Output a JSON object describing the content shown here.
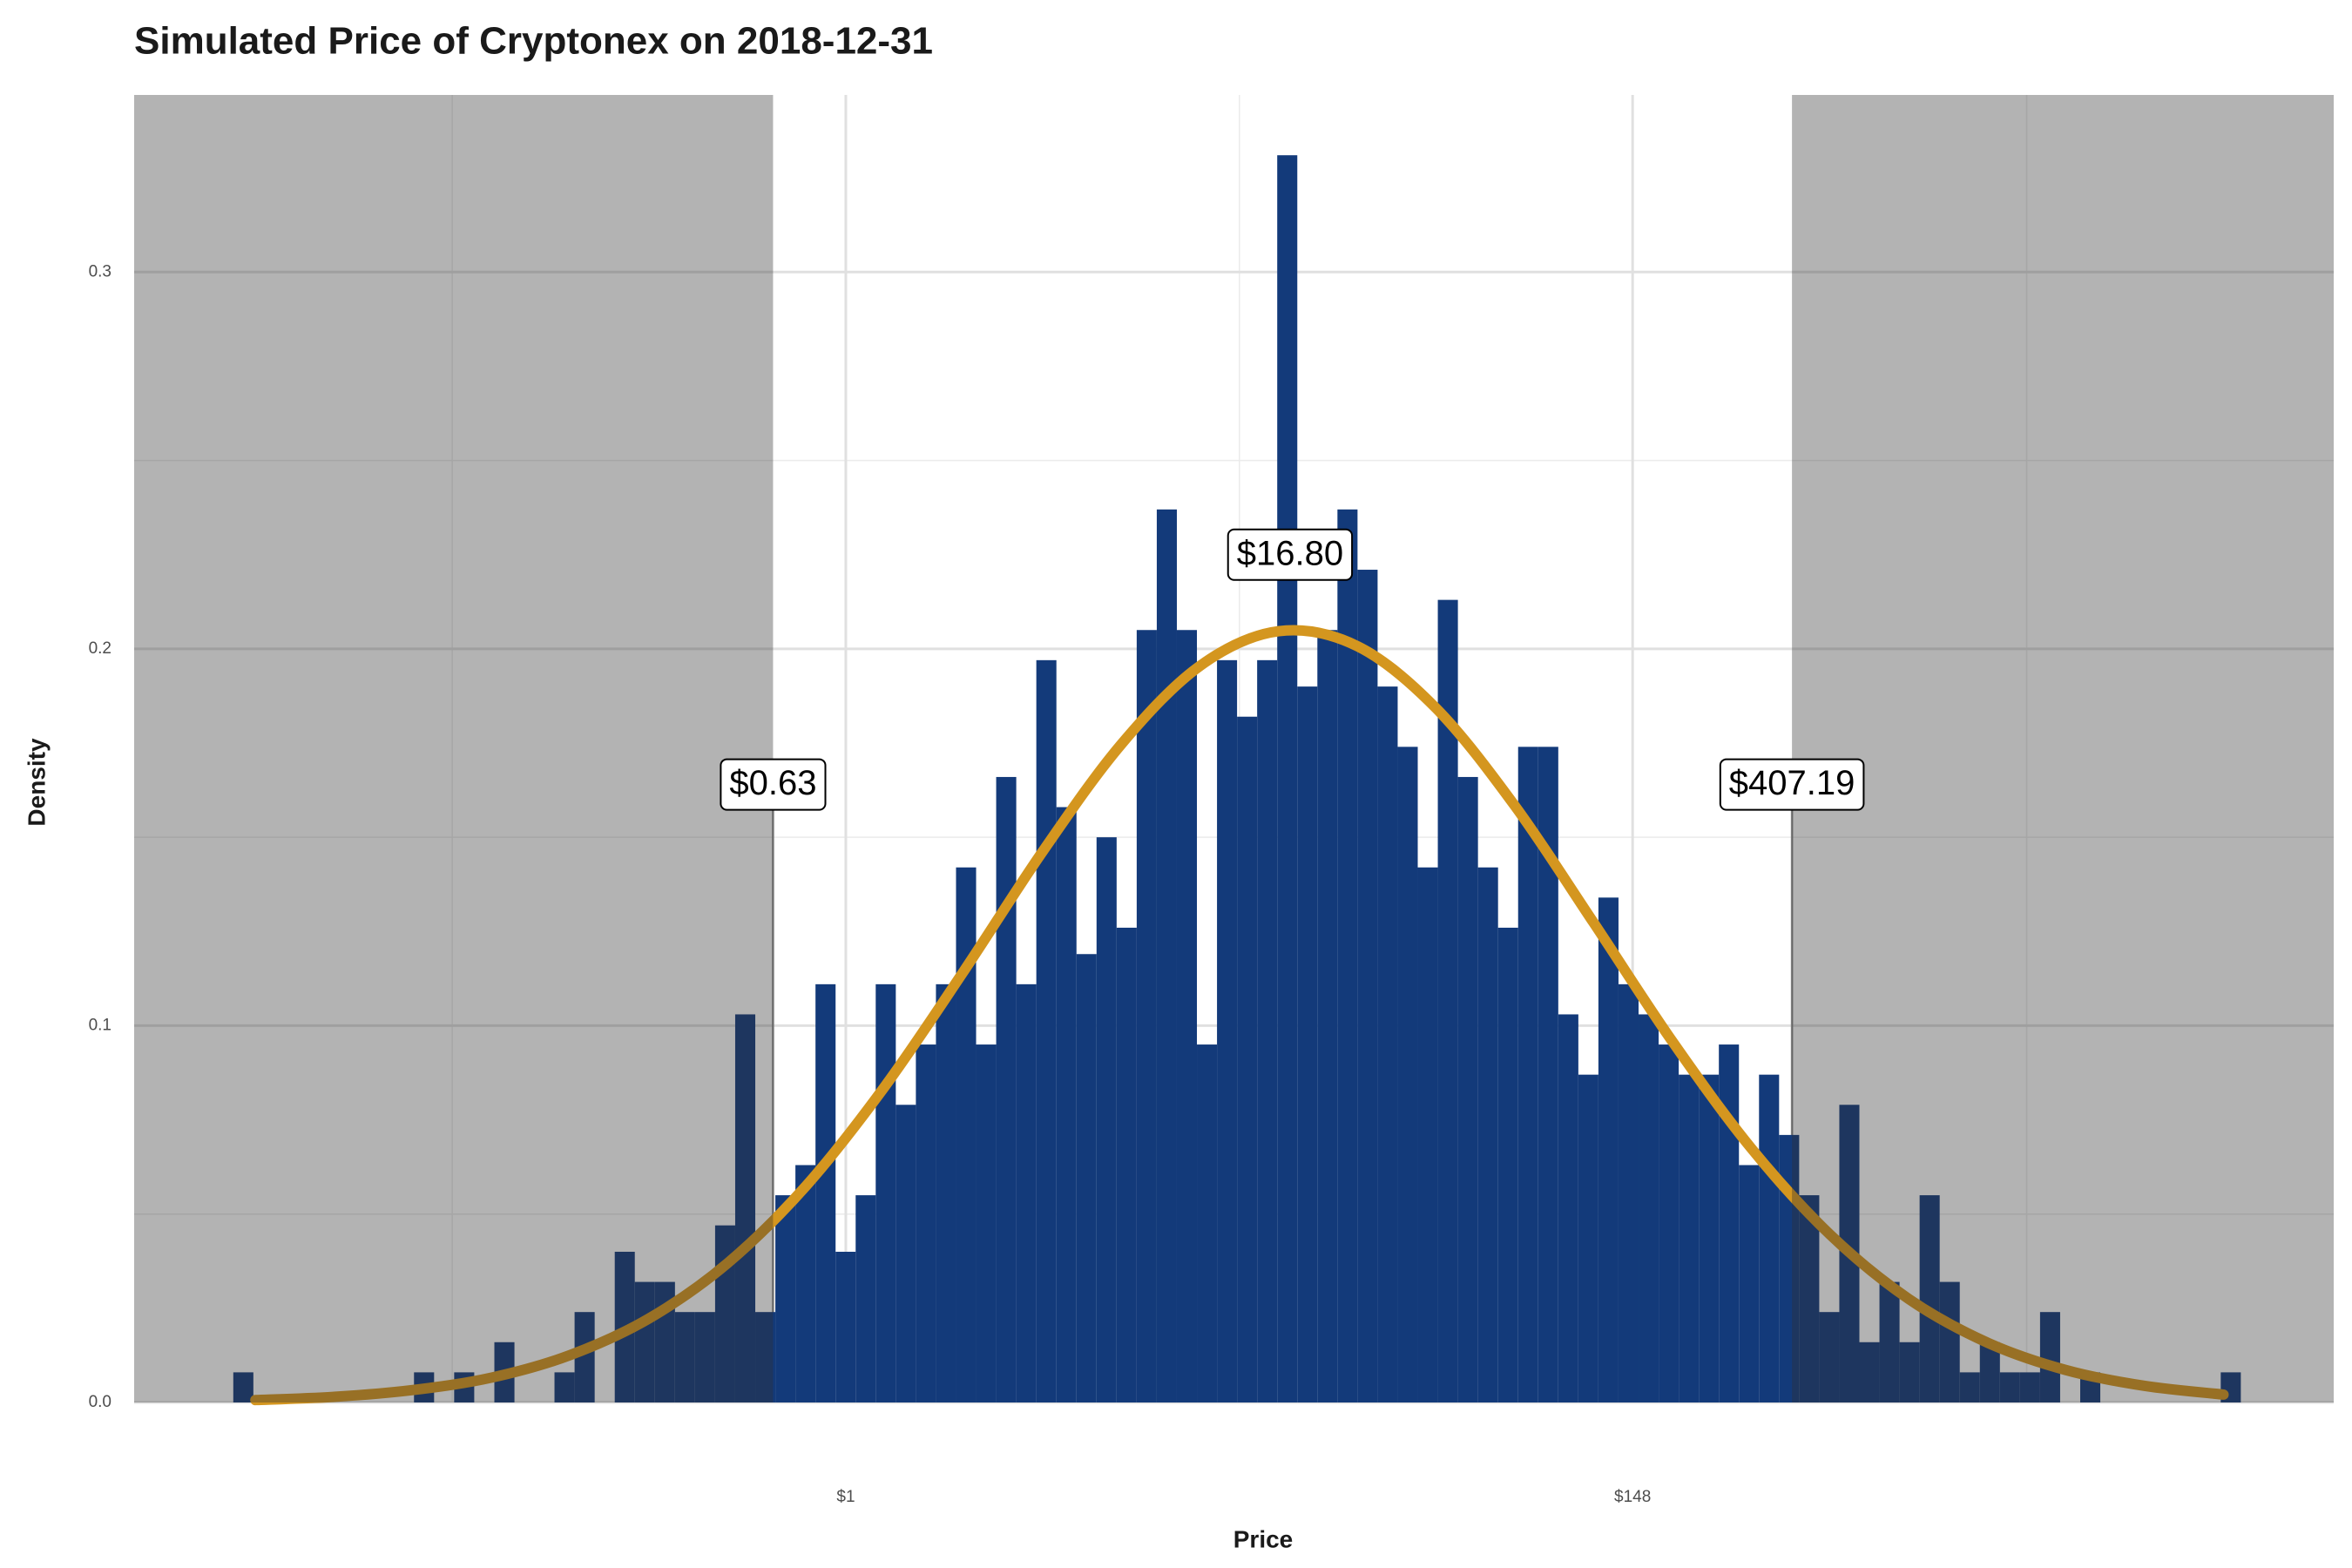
{
  "chart_data": {
    "type": "histogram",
    "title": "Simulated Price of Cryptonex on 2018-12-31",
    "x_label": "Price",
    "y_label": "Density",
    "xscale": "log",
    "xlim": [
      0.01089,
      12708
    ],
    "xticks": [
      {
        "value": 1,
        "label": "$1"
      },
      {
        "value": 148,
        "label": "$148"
      }
    ],
    "xminor": [
      0.0821,
      12.18,
      1808
    ],
    "ylim": [
      0,
      0.347
    ],
    "yticks": [
      {
        "value": 0,
        "label": "0.0"
      },
      0.1,
      0.2,
      0.3
    ],
    "yminor": [
      0.05,
      0.15,
      0.25
    ],
    "grid": true,
    "color": "#133a7a",
    "bins": [
      0.02044,
      0.02322,
      0.02638,
      0.02997,
      0.03404,
      0.03868,
      0.04394,
      0.04991,
      0.0567,
      0.06441,
      0.07317,
      0.08312,
      0.09442,
      0.1073,
      0.1219,
      0.1384,
      0.1572,
      0.1786,
      0.2029,
      0.2305,
      0.2618,
      0.2974,
      0.3379,
      0.3838,
      0.436,
      0.4953,
      0.5627,
      0.6392,
      0.7261,
      0.8249,
      0.9371,
      1.0645,
      1.2092,
      1.3737,
      1.5605,
      1.7727,
      2.0138,
      2.2876,
      2.5987,
      2.9521,
      3.3535,
      3.8095,
      4.3276,
      4.9161,
      5.5845,
      6.344,
      7.207,
      8.187,
      9.3,
      10.565,
      12.001,
      13.633,
      15.487,
      17.593,
      19.985,
      22.703,
      25.79,
      29.297,
      33.281,
      37.807,
      42.948,
      48.789,
      55.424,
      62.961,
      71.522,
      81.248,
      92.297,
      104.85,
      119.1,
      135.3,
      153.7,
      174.6,
      198.34,
      225.31,
      255.95,
      290.76,
      330.3,
      375.21,
      426.24,
      484.2,
      550.04,
      624.84,
      709.81,
      806.33,
      915.98,
      1040.5,
      1182.0,
      1342.8,
      1525.4,
      1732.8,
      1968.4,
      2236.1,
      2540.2,
      2885.6,
      3278.0,
      3723.8,
      4230.2,
      4805.4,
      5458.9,
      6201.2,
      7044.5
    ],
    "values": [
      0.008,
      0,
      0,
      0,
      0,
      0,
      0,
      0,
      0,
      0.008,
      0,
      0.008,
      0,
      0.016,
      0,
      0,
      0.008,
      0.024,
      0,
      0.04,
      0.032,
      0.032,
      0.024,
      0.024,
      0.047,
      0.103,
      0.024,
      0.055,
      0.063,
      0.111,
      0.04,
      0.055,
      0.111,
      0.079,
      0.095,
      0.111,
      0.142,
      0.095,
      0.166,
      0.111,
      0.197,
      0.158,
      0.119,
      0.15,
      0.126,
      0.205,
      0.237,
      0.205,
      0.095,
      0.197,
      0.182,
      0.197,
      0.331,
      0.19,
      0.205,
      0.237,
      0.221,
      0.19,
      0.174,
      0.142,
      0.213,
      0.166,
      0.142,
      0.126,
      0.174,
      0.174,
      0.103,
      0.087,
      0.134,
      0.111,
      0.103,
      0.095,
      0.087,
      0.087,
      0.095,
      0.063,
      0.087,
      0.071,
      0.055,
      0.024,
      0.079,
      0.016,
      0.032,
      0.016,
      0.055,
      0.032,
      0.008,
      0.016,
      0.008,
      0.008,
      0.024,
      0,
      0.008,
      0,
      0,
      0,
      0,
      0,
      0,
      0.008
    ],
    "curve": {
      "color": "#d4961f",
      "x": [
        0.02352,
        0.03877,
        0.06393,
        0.1054,
        0.1738,
        0.2865,
        0.4724,
        0.7788,
        1.284,
        2.117,
        3.49,
        5.755,
        9.488,
        15.64,
        25.79,
        42.52,
        70.11,
        115.58,
        190.57,
        314.19,
        518.01,
        854.06,
        1408.1,
        2321.6,
        3827.6,
        6310.7
      ],
      "values": [
        0.00065,
        0.0015,
        0.0033,
        0.0066,
        0.0126,
        0.0223,
        0.037,
        0.0576,
        0.084,
        0.1145,
        0.1462,
        0.1747,
        0.1955,
        0.2047,
        0.2007,
        0.1842,
        0.1583,
        0.1273,
        0.0958,
        0.0675,
        0.0446,
        0.0275,
        0.0159,
        0.0086,
        0.0044,
        0.0021
      ]
    },
    "annotations": [
      {
        "x": 0.63,
        "y": 0.164,
        "label": "$0.63"
      },
      {
        "x": 16.8,
        "y": 0.225,
        "label": "$16.80"
      },
      {
        "x": 407.19,
        "y": 0.164,
        "label": "$407.19"
      }
    ],
    "shade": {
      "color": "#323232",
      "opacity": 0.37,
      "outside": true
    }
  }
}
